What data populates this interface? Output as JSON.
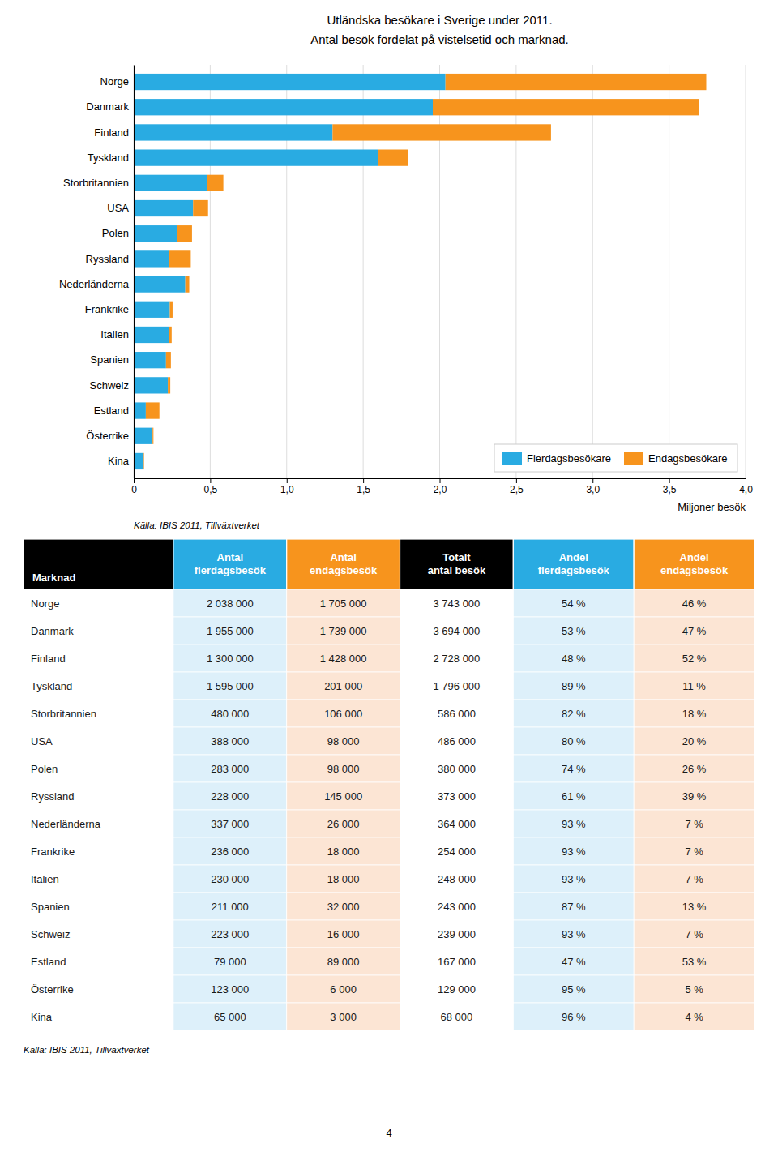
{
  "chart_data": {
    "type": "bar",
    "orientation": "horizontal",
    "stacked": true,
    "grid": true,
    "legend": "lower right",
    "title": "Utländska besökare i Sverige under 2011.",
    "subtitle": "Antal besök fördelat på vistelsetid och marknad.",
    "x_label": "Miljoner besök",
    "source": "Källa: IBIS 2011, Tillväxtverket",
    "page_number": "4",
    "categories": [
      "Norge",
      "Danmark",
      "Finland",
      "Tyskland",
      "Storbritannien",
      "USA",
      "Polen",
      "Ryssland",
      "Nederländerna",
      "Frankrike",
      "Italien",
      "Spanien",
      "Schweiz",
      "Estland",
      "Österrike",
      "Kina"
    ],
    "series": [
      {
        "name": "Flerdagsbesökare",
        "color": "#29ABE2",
        "values": [
          2.038,
          1.955,
          1.3,
          1.595,
          0.48,
          0.388,
          0.283,
          0.228,
          0.337,
          0.236,
          0.23,
          0.211,
          0.223,
          0.079,
          0.123,
          0.065
        ]
      },
      {
        "name": "Endagsbesökare",
        "color": "#F7941D",
        "values": [
          1.705,
          1.739,
          1.428,
          0.201,
          0.106,
          0.098,
          0.098,
          0.145,
          0.026,
          0.018,
          0.018,
          0.032,
          0.016,
          0.089,
          0.006,
          0.003
        ]
      }
    ],
    "xlim": [
      0,
      4.0
    ],
    "xticks": [
      0,
      {
        "value": 0.5,
        "label": "0,5"
      },
      {
        "value": 1.0,
        "label": "1,0"
      },
      {
        "value": 1.5,
        "label": "1,5"
      },
      {
        "value": 2.0,
        "label": "2,0"
      },
      {
        "value": 2.5,
        "label": "2,5"
      },
      {
        "value": 3.0,
        "label": "3,0"
      },
      {
        "value": 3.5,
        "label": "3,5"
      },
      {
        "value": 4.0,
        "label": "4,0"
      }
    ],
    "table": {
      "headers": [
        "Marknad",
        "Antal\nflerdagsbesök",
        "Antal\nendagsbesök",
        "Totalt\nantal besök",
        "Andel\nflerdagsbesök",
        "Andel\nendagsbesök"
      ],
      "header_colors": [
        "#000000",
        "#29ABE2",
        "#F7941D",
        "#000000",
        "#29ABE2",
        "#F7941D"
      ],
      "column_colors": [
        "#ffffff",
        "#ddf0fa",
        "#fce5d4",
        "#ffffff",
        "#ddf0fa",
        "#fce5d4"
      ],
      "rows": [
        [
          "Norge",
          "2 038 000",
          "1 705 000",
          "3 743 000",
          "54 %",
          "46 %"
        ],
        [
          "Danmark",
          "1 955 000",
          "1 739 000",
          "3 694 000",
          "53 %",
          "47 %"
        ],
        [
          "Finland",
          "1 300 000",
          "1 428 000",
          "2 728 000",
          "48 %",
          "52 %"
        ],
        [
          "Tyskland",
          "1 595 000",
          "201 000",
          "1 796 000",
          "89 %",
          "11 %"
        ],
        [
          "Storbritannien",
          "480 000",
          "106 000",
          "586 000",
          "82 %",
          "18 %"
        ],
        [
          "USA",
          "388 000",
          "98 000",
          "486 000",
          "80 %",
          "20 %"
        ],
        [
          "Polen",
          "283 000",
          "98 000",
          "380 000",
          "74 %",
          "26 %"
        ],
        [
          "Ryssland",
          "228 000",
          "145 000",
          "373 000",
          "61 %",
          "39 %"
        ],
        [
          "Nederländerna",
          "337 000",
          "26 000",
          "364 000",
          "93 %",
          "7 %"
        ],
        [
          "Frankrike",
          "236 000",
          "18 000",
          "254 000",
          "93 %",
          "7 %"
        ],
        [
          "Italien",
          "230 000",
          "18 000",
          "248 000",
          "93 %",
          "7 %"
        ],
        [
          "Spanien",
          "211 000",
          "32 000",
          "243 000",
          "87 %",
          "13 %"
        ],
        [
          "Schweiz",
          "223 000",
          "16 000",
          "239 000",
          "93 %",
          "7 %"
        ],
        [
          "Estland",
          "79 000",
          "89 000",
          "167 000",
          "47 %",
          "53 %"
        ],
        [
          "Österrike",
          "123 000",
          "6 000",
          "129 000",
          "95 %",
          "5 %"
        ],
        [
          "Kina",
          "65 000",
          "3 000",
          "68 000",
          "96 %",
          "4 %"
        ]
      ]
    }
  }
}
